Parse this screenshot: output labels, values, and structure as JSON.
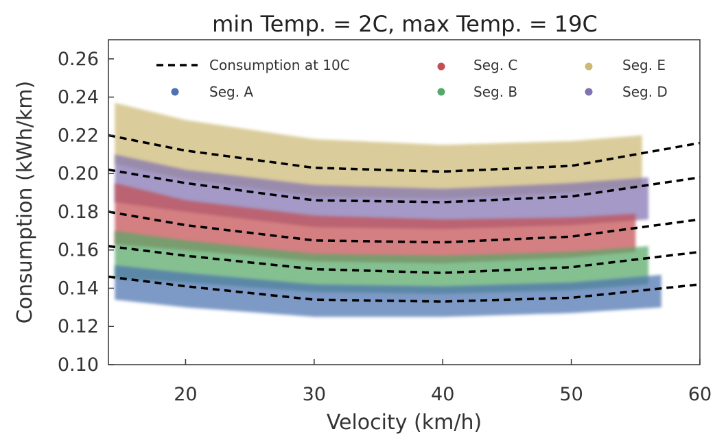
{
  "chart_data": {
    "type": "scatter",
    "title": "min Temp. = 2C, max Temp. = 19C",
    "xlabel": "Velocity (km/h)",
    "ylabel": "Consumption (kWh/km)",
    "xlim": [
      14,
      60
    ],
    "ylim": [
      0.1,
      0.27
    ],
    "xticks": [
      20,
      30,
      40,
      50,
      60
    ],
    "yticks": [
      0.1,
      0.12,
      0.14,
      0.16,
      0.18,
      0.2,
      0.22,
      0.24,
      0.26
    ],
    "ytick_labels": [
      "0.10",
      "0.12",
      "0.14",
      "0.16",
      "0.18",
      "0.20",
      "0.22",
      "0.24",
      "0.26"
    ],
    "grid": false,
    "legend": {
      "placement": "top",
      "columns": 3,
      "entries": [
        {
          "key": "consumption",
          "label": "Consumption at 10C"
        },
        {
          "key": "A",
          "label": "Seg. A"
        },
        {
          "key": "C",
          "label": "Seg. C"
        },
        {
          "key": "B",
          "label": "Seg. B"
        },
        {
          "key": "E",
          "label": "Seg. E"
        },
        {
          "key": "D",
          "label": "Seg. D"
        }
      ]
    },
    "series": [
      {
        "key": "E",
        "name": "Seg. E",
        "color": "#ccb974",
        "x_range": [
          14.5,
          55.5
        ],
        "lower": [
          [
            14.5,
            0.205
          ],
          [
            20,
            0.197
          ],
          [
            30,
            0.188
          ],
          [
            40,
            0.187
          ],
          [
            50,
            0.19
          ],
          [
            55.5,
            0.193
          ]
        ],
        "upper": [
          [
            14.5,
            0.237
          ],
          [
            20,
            0.228
          ],
          [
            30,
            0.218
          ],
          [
            40,
            0.215
          ],
          [
            50,
            0.217
          ],
          [
            55.5,
            0.22
          ]
        ]
      },
      {
        "key": "D",
        "name": "Seg. D",
        "color": "#8172b2",
        "x_range": [
          14.5,
          56
        ],
        "lower": [
          [
            14.5,
            0.185
          ],
          [
            20,
            0.18
          ],
          [
            30,
            0.172
          ],
          [
            40,
            0.171
          ],
          [
            50,
            0.173
          ],
          [
            56,
            0.176
          ]
        ],
        "upper": [
          [
            14.5,
            0.21
          ],
          [
            20,
            0.202
          ],
          [
            30,
            0.194
          ],
          [
            40,
            0.192
          ],
          [
            50,
            0.195
          ],
          [
            56,
            0.198
          ]
        ]
      },
      {
        "key": "C",
        "name": "Seg. C",
        "color": "#c44e52",
        "x_range": [
          14.5,
          55
        ],
        "lower": [
          [
            14.5,
            0.163
          ],
          [
            20,
            0.16
          ],
          [
            30,
            0.154
          ],
          [
            40,
            0.153
          ],
          [
            50,
            0.156
          ],
          [
            55,
            0.159
          ]
        ],
        "upper": [
          [
            14.5,
            0.195
          ],
          [
            20,
            0.186
          ],
          [
            30,
            0.178
          ],
          [
            40,
            0.176
          ],
          [
            50,
            0.177
          ],
          [
            55,
            0.179
          ]
        ]
      },
      {
        "key": "B",
        "name": "Seg. B",
        "color": "#55a868",
        "x_range": [
          14.5,
          56
        ],
        "lower": [
          [
            14.5,
            0.145
          ],
          [
            20,
            0.143
          ],
          [
            30,
            0.138
          ],
          [
            40,
            0.137
          ],
          [
            50,
            0.139
          ],
          [
            56,
            0.142
          ]
        ],
        "upper": [
          [
            14.5,
            0.17
          ],
          [
            20,
            0.165
          ],
          [
            30,
            0.158
          ],
          [
            40,
            0.157
          ],
          [
            50,
            0.159
          ],
          [
            56,
            0.162
          ]
        ]
      },
      {
        "key": "A",
        "name": "Seg. A",
        "color": "#4c72b0",
        "x_range": [
          14.5,
          57
        ],
        "lower": [
          [
            14.5,
            0.134
          ],
          [
            20,
            0.13
          ],
          [
            30,
            0.125
          ],
          [
            40,
            0.125
          ],
          [
            50,
            0.127
          ],
          [
            57,
            0.13
          ]
        ],
        "upper": [
          [
            14.5,
            0.152
          ],
          [
            20,
            0.148
          ],
          [
            30,
            0.142
          ],
          [
            40,
            0.141
          ],
          [
            50,
            0.143
          ],
          [
            57,
            0.147
          ]
        ]
      }
    ],
    "curves": [
      {
        "name": "Consumption at 10C",
        "style": "dashed",
        "color": "#000000",
        "points": [
          [
            14,
            0.22
          ],
          [
            20,
            0.212
          ],
          [
            30,
            0.203
          ],
          [
            40,
            0.201
          ],
          [
            50,
            0.204
          ],
          [
            60,
            0.216
          ]
        ]
      },
      {
        "name": "Consumption at 10C",
        "style": "dashed",
        "color": "#000000",
        "points": [
          [
            14,
            0.202
          ],
          [
            20,
            0.195
          ],
          [
            30,
            0.186
          ],
          [
            40,
            0.185
          ],
          [
            50,
            0.188
          ],
          [
            60,
            0.198
          ]
        ]
      },
      {
        "name": "Consumption at 10C",
        "style": "dashed",
        "color": "#000000",
        "points": [
          [
            14,
            0.18
          ],
          [
            20,
            0.173
          ],
          [
            30,
            0.165
          ],
          [
            40,
            0.164
          ],
          [
            50,
            0.167
          ],
          [
            60,
            0.176
          ]
        ]
      },
      {
        "name": "Consumption at 10C",
        "style": "dashed",
        "color": "#000000",
        "points": [
          [
            14,
            0.162
          ],
          [
            20,
            0.157
          ],
          [
            30,
            0.15
          ],
          [
            40,
            0.148
          ],
          [
            50,
            0.151
          ],
          [
            60,
            0.159
          ]
        ]
      },
      {
        "name": "Consumption at 10C",
        "style": "dashed",
        "color": "#000000",
        "points": [
          [
            14,
            0.146
          ],
          [
            20,
            0.141
          ],
          [
            30,
            0.134
          ],
          [
            40,
            0.133
          ],
          [
            50,
            0.135
          ],
          [
            60,
            0.142
          ]
        ]
      }
    ]
  }
}
